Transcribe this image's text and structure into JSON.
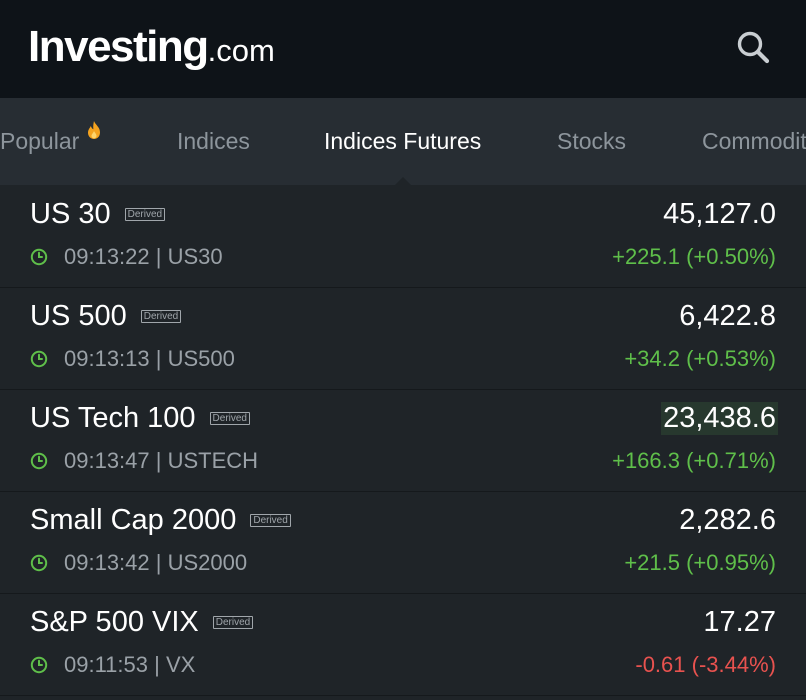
{
  "header": {
    "logo_main": "Investing",
    "logo_suffix": ".com",
    "search_icon": "search-icon"
  },
  "tabs": [
    {
      "label": "Popular",
      "icon": "fire-icon"
    },
    {
      "label": "Indices"
    },
    {
      "label": "Indices Futures",
      "active": true
    },
    {
      "label": "Stocks"
    },
    {
      "label": "Commodit"
    }
  ],
  "rows": [
    {
      "name": "US 30",
      "badge": "Derived",
      "time": "09:13:22",
      "symbol": "US30",
      "sub": "09:13:22 | US30",
      "price": "45,127.0",
      "change": "+225.1 (+0.50%)",
      "direction": "up"
    },
    {
      "name": "US 500",
      "badge": "Derived",
      "time": "09:13:13",
      "symbol": "US500",
      "sub": "09:13:13 | US500",
      "price": "6,422.8",
      "change": "+34.2 (+0.53%)",
      "direction": "up"
    },
    {
      "name": "US Tech 100",
      "badge": "Derived",
      "time": "09:13:47",
      "symbol": "USTECH",
      "sub": "09:13:47 | USTECH",
      "price": "23,438.6",
      "change": "+166.3 (+0.71%)",
      "direction": "up",
      "highlighted": true
    },
    {
      "name": "Small Cap 2000",
      "badge": "Derived",
      "time": "09:13:42",
      "symbol": "US2000",
      "sub": "09:13:42 | US2000",
      "price": "2,282.6",
      "change": "+21.5 (+0.95%)",
      "direction": "up"
    },
    {
      "name": "S&P 500 VIX",
      "badge": "Derived",
      "time": "09:11:53",
      "symbol": "VX",
      "sub": "09:11:53 | VX",
      "price": "17.27",
      "change": "-0.61 (-3.44%)",
      "direction": "down"
    }
  ],
  "colors": {
    "header_bg": "#0e1318",
    "tabs_bg": "#272d33",
    "list_bg": "#1f2428",
    "positive": "#5fbf4a",
    "negative": "#e8524f"
  }
}
